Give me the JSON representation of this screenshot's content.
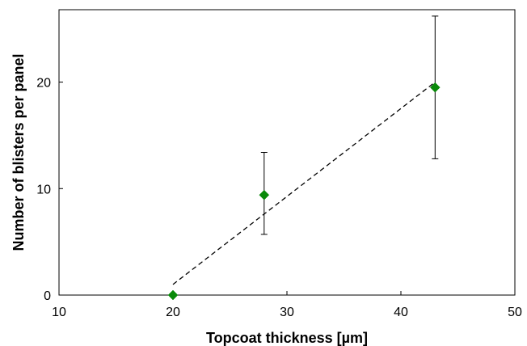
{
  "chart_data": {
    "type": "scatter",
    "title": "",
    "xlabel": "Topcoat thickness [µm]",
    "ylabel": "Number of blisters per panel",
    "xlim": [
      10,
      50
    ],
    "ylim": [
      0,
      26.8
    ],
    "xticks": [
      10,
      20,
      30,
      40,
      50
    ],
    "yticks": [
      0,
      10,
      20
    ],
    "grid": false,
    "legend": "none",
    "marker": "diamond",
    "marker_color": "#0a8a0a",
    "series": [
      {
        "x": [
          20,
          28,
          43
        ],
        "y": [
          0,
          9.4,
          19.5
        ],
        "error_low": [
          0,
          5.7,
          12.8
        ],
        "error_high": [
          0,
          13.4,
          26.2
        ]
      }
    ],
    "trendline": {
      "style": "dashed",
      "color": "#000000",
      "x": [
        20,
        43
      ],
      "y": [
        1.0,
        20.0
      ]
    }
  }
}
